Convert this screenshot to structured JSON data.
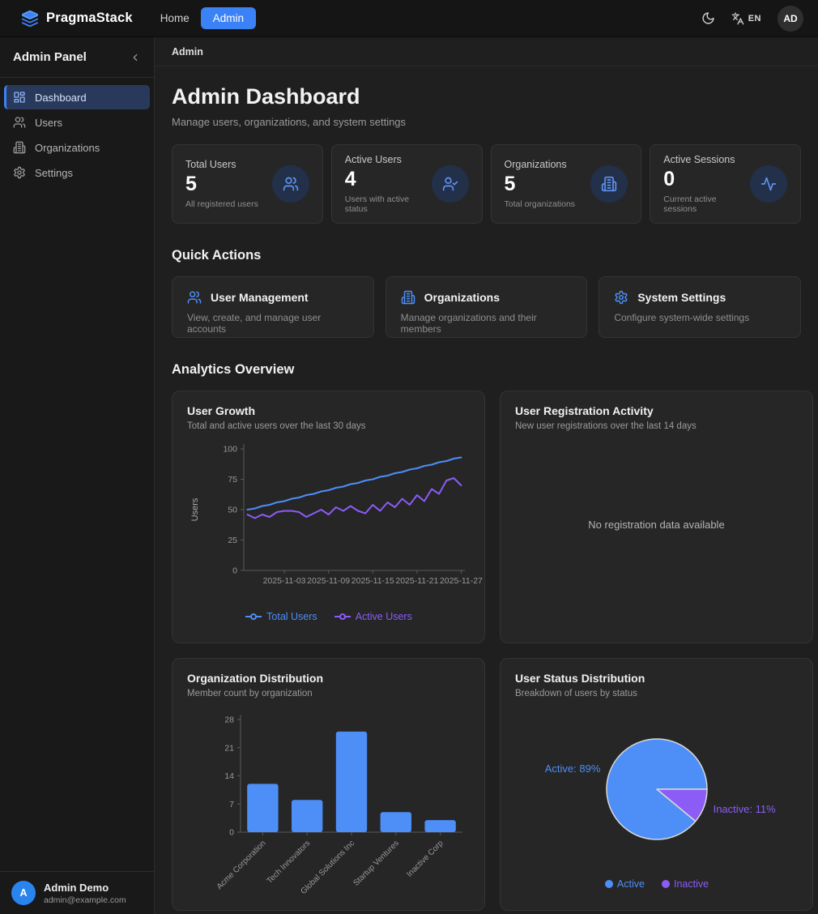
{
  "navbar": {
    "brand": "PragmaStack",
    "links": {
      "home": "Home",
      "admin": "Admin"
    },
    "language": "EN",
    "avatar_initials": "AD"
  },
  "sidebar": {
    "title": "Admin Panel",
    "items": [
      {
        "label": "Dashboard",
        "icon": "dashboard-icon",
        "active": true
      },
      {
        "label": "Users",
        "icon": "users-icon",
        "active": false
      },
      {
        "label": "Organizations",
        "icon": "building-icon",
        "active": false
      },
      {
        "label": "Settings",
        "icon": "gear-icon",
        "active": false
      }
    ],
    "user": {
      "initial": "A",
      "name": "Admin Demo",
      "email": "admin@example.com"
    }
  },
  "breadcrumb": "Admin",
  "page": {
    "title": "Admin Dashboard",
    "subtitle": "Manage users, organizations, and system settings"
  },
  "stats": [
    {
      "label": "Total Users",
      "value": "5",
      "description": "All registered users",
      "icon": "users-icon"
    },
    {
      "label": "Active Users",
      "value": "4",
      "description": "Users with active status",
      "icon": "user-check-icon"
    },
    {
      "label": "Organizations",
      "value": "5",
      "description": "Total organizations",
      "icon": "building-icon"
    },
    {
      "label": "Active Sessions",
      "value": "0",
      "description": "Current active sessions",
      "icon": "activity-icon"
    }
  ],
  "quick_actions": {
    "heading": "Quick Actions",
    "cards": [
      {
        "title": "User Management",
        "description": "View, create, and manage user accounts",
        "icon": "users-icon"
      },
      {
        "title": "Organizations",
        "description": "Manage organizations and their members",
        "icon": "building-icon"
      },
      {
        "title": "System Settings",
        "description": "Configure system-wide settings",
        "icon": "gear-icon"
      }
    ]
  },
  "analytics": {
    "heading": "Analytics Overview",
    "cards": [
      {
        "title": "User Growth",
        "subtitle": "Total and active users over the last 30 days"
      },
      {
        "title": "User Registration Activity",
        "subtitle": "New user registrations over the last 14 days"
      },
      {
        "title": "Organization Distribution",
        "subtitle": "Member count by organization"
      },
      {
        "title": "User Status Distribution",
        "subtitle": "Breakdown of users by status"
      }
    ]
  },
  "colors": {
    "accent": "#3b82f6",
    "chart_blue": "#4d8ef7",
    "chart_purple": "#8b5cf6",
    "axis": "#5a5a5a",
    "tick_text": "#9a9a9a",
    "card_bg": "#262626",
    "pie_stroke": "#d8d8d8"
  },
  "chart_data": [
    {
      "id": "user-growth",
      "type": "line",
      "title": "User Growth",
      "xlabel": "",
      "ylabel": "Users",
      "ylim": [
        0,
        100
      ],
      "yticks": [
        0,
        25,
        50,
        75,
        100
      ],
      "x_tick_indices": [
        5,
        11,
        17,
        23,
        29
      ],
      "x_tick_labels": [
        "2025-11-03",
        "2025-11-09",
        "2025-11-15",
        "2025-11-21",
        "2025-11-27"
      ],
      "legend_position": "bottom",
      "grid": false,
      "series": [
        {
          "name": "Total Users",
          "color": "#4d8ef7",
          "values": [
            50,
            51,
            53,
            54,
            56,
            57,
            59,
            60,
            62,
            63,
            65,
            66,
            68,
            69,
            71,
            72,
            74,
            75,
            77,
            78,
            80,
            81,
            83,
            84,
            86,
            87,
            89,
            90,
            92,
            93
          ]
        },
        {
          "name": "Active Users",
          "color": "#8b5cf6",
          "values": [
            46,
            43,
            46,
            44,
            48,
            49,
            49,
            48,
            44,
            47,
            50,
            46,
            52,
            49,
            53,
            49,
            47,
            54,
            49,
            56,
            52,
            59,
            54,
            62,
            57,
            67,
            63,
            74,
            76,
            70
          ]
        }
      ]
    },
    {
      "id": "user-registration",
      "type": "line",
      "title": "User Registration Activity",
      "series": [],
      "empty_message": "No registration data available"
    },
    {
      "id": "org-distribution",
      "type": "bar",
      "title": "Organization Distribution",
      "categories": [
        "Acme Corporation",
        "Tech Innovators",
        "Global Solutions Inc",
        "Startup Ventures",
        "Inactive Corp"
      ],
      "values": [
        12,
        8,
        25,
        5,
        3
      ],
      "ylim": [
        0,
        28
      ],
      "yticks": [
        0,
        7,
        14,
        21,
        28
      ],
      "bar_color": "#4d8ef7",
      "grid": false
    },
    {
      "id": "user-status",
      "type": "pie",
      "title": "User Status Distribution",
      "start_angle_deg": 39.6,
      "slices": [
        {
          "label": "Active",
          "percent": 89,
          "color": "#4d8ef7"
        },
        {
          "label": "Inactive",
          "percent": 11,
          "color": "#8b5cf6"
        }
      ],
      "legend_position": "bottom"
    }
  ]
}
